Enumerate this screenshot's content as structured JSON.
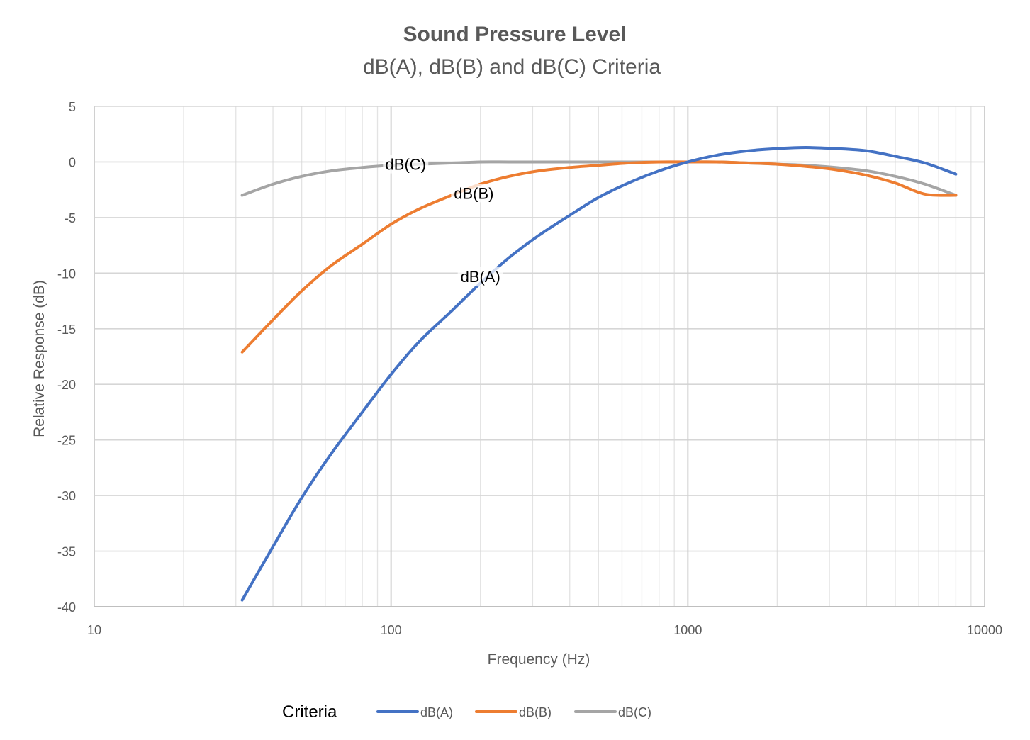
{
  "chart_data": {
    "type": "line",
    "title": "Sound Pressure Level",
    "subtitle": "dB(A), dB(B) and dB(C) Criteria",
    "xlabel": "Frequency (Hz)",
    "ylabel": "Relative Response (dB)",
    "xscale": "log",
    "xlim": [
      10,
      10000
    ],
    "ylim": [
      -40,
      5
    ],
    "x_ticks": [
      "10",
      "100",
      "1000",
      "10000"
    ],
    "y_ticks": [
      "5",
      "0",
      "-5",
      "-10",
      "-15",
      "-20",
      "-25",
      "-30",
      "-35",
      "-40"
    ],
    "grid": true,
    "legend": {
      "title": "Criteria",
      "position": "bottom"
    },
    "x": [
      31.5,
      40,
      50,
      63,
      80,
      100,
      125,
      160,
      200,
      250,
      315,
      400,
      500,
      630,
      800,
      1000,
      1250,
      1600,
      2000,
      2500,
      3150,
      4000,
      5000,
      6300,
      8000
    ],
    "series": [
      {
        "name": "dB(A)",
        "color": "#4472C4",
        "annotation": "dB(A)",
        "values": [
          -39.4,
          -34.6,
          -30.2,
          -26.2,
          -22.5,
          -19.1,
          -16.1,
          -13.4,
          -10.9,
          -8.6,
          -6.6,
          -4.8,
          -3.2,
          -1.9,
          -0.8,
          0,
          0.6,
          1.0,
          1.2,
          1.3,
          1.2,
          1.0,
          0.5,
          -0.1,
          -1.1
        ]
      },
      {
        "name": "dB(B)",
        "color": "#ED7D31",
        "annotation": "dB(B)",
        "values": [
          -17.1,
          -14.2,
          -11.6,
          -9.3,
          -7.4,
          -5.6,
          -4.2,
          -3.0,
          -2.0,
          -1.3,
          -0.8,
          -0.5,
          -0.3,
          -0.1,
          0,
          0,
          0,
          -0.1,
          -0.2,
          -0.4,
          -0.7,
          -1.2,
          -1.9,
          -2.9,
          -3.0
        ]
      },
      {
        "name": "dB(C)",
        "color": "#A5A5A5",
        "annotation": "dB(C)",
        "values": [
          -3.0,
          -2.0,
          -1.3,
          -0.8,
          -0.5,
          -0.3,
          -0.2,
          -0.1,
          0,
          0,
          0,
          0,
          0,
          0,
          0,
          0,
          0,
          -0.1,
          -0.2,
          -0.3,
          -0.5,
          -0.8,
          -1.3,
          -2.0,
          -3.0
        ]
      }
    ]
  }
}
